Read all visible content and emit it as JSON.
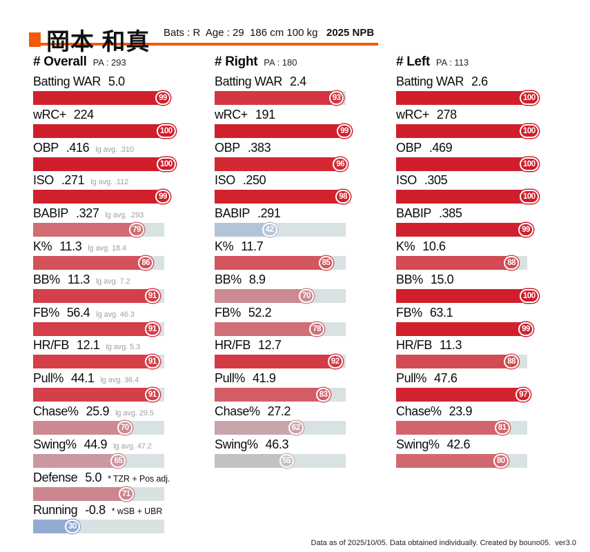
{
  "header": {
    "player_name": "岡本 和真",
    "bio": "Bats : R  Age : 29  186 cm 100 kg",
    "season": "2025 NPB"
  },
  "colors": {
    "accent": "#f2590d",
    "track": "#d9e2e2",
    "scale": [
      [
        0,
        "#5c84c4"
      ],
      [
        30,
        "#92abd0"
      ],
      [
        45,
        "#b9ccd9"
      ],
      [
        55,
        "#c4c1c5"
      ],
      [
        65,
        "#cb97a0"
      ],
      [
        75,
        "#cf7a82"
      ],
      [
        85,
        "#d3565d"
      ],
      [
        92,
        "#d43b44"
      ],
      [
        97,
        "#d1242f"
      ],
      [
        100,
        "#d01e2b"
      ]
    ]
  },
  "chart_data": {
    "type": "bar",
    "unit": "percentile vs league (0-100)",
    "ylim": [
      0,
      100
    ],
    "columns": [
      {
        "title": "# Overall",
        "pa_label": "PA : 293",
        "stats": [
          {
            "label": "Batting WAR",
            "value": "5.0",
            "note": "",
            "pct": 99
          },
          {
            "label": "wRC+",
            "value": "224",
            "note": "",
            "pct": 100
          },
          {
            "label": "OBP",
            "value": ".416",
            "note": "lg avg. .310",
            "pct": 100
          },
          {
            "label": "ISO",
            "value": ".271",
            "note": "lg avg. .112",
            "pct": 99
          },
          {
            "label": "BABIP",
            "value": ".327",
            "note": "lg avg. .293",
            "pct": 79
          },
          {
            "label": "K%",
            "value": "11.3",
            "note": "lg avg. 18.4",
            "pct": 86
          },
          {
            "label": "BB%",
            "value": "11.3",
            "note": "lg avg. 7.2",
            "pct": 91
          },
          {
            "label": "FB%",
            "value": "56.4",
            "note": "lg avg. 46.3",
            "pct": 91
          },
          {
            "label": "HR/FB",
            "value": "12.1",
            "note": "lg avg. 5.3",
            "pct": 91
          },
          {
            "label": "Pull%",
            "value": "44.1",
            "note": "lg avg. 36.4",
            "pct": 91
          },
          {
            "label": "Chase%",
            "value": "25.9",
            "note": "lg avg. 29.5",
            "pct": 70
          },
          {
            "label": "Swing%",
            "value": "44.9",
            "note": "lg avg. 47.2",
            "pct": 65
          },
          {
            "label": "Defense",
            "value": "5.0",
            "note": "* TZR + Pos adj.",
            "note_style": "black",
            "pct": 71
          },
          {
            "label": "Running",
            "value": "-0.8",
            "note": "* wSB + UBR",
            "note_style": "black",
            "pct": 30
          }
        ]
      },
      {
        "title": "# Right",
        "pa_label": "PA : 180",
        "stats": [
          {
            "label": "Batting WAR",
            "value": "2.4",
            "note": "",
            "pct": 93
          },
          {
            "label": "wRC+",
            "value": "191",
            "note": "",
            "pct": 99
          },
          {
            "label": "OBP",
            "value": ".383",
            "note": "",
            "pct": 96
          },
          {
            "label": "ISO",
            "value": ".250",
            "note": "",
            "pct": 98
          },
          {
            "label": "BABIP",
            "value": ".291",
            "note": "",
            "pct": 42
          },
          {
            "label": "K%",
            "value": "11.7",
            "note": "",
            "pct": 85
          },
          {
            "label": "BB%",
            "value": "8.9",
            "note": "",
            "pct": 70
          },
          {
            "label": "FB%",
            "value": "52.2",
            "note": "",
            "pct": 78
          },
          {
            "label": "HR/FB",
            "value": "12.7",
            "note": "",
            "pct": 92
          },
          {
            "label": "Pull%",
            "value": "41.9",
            "note": "",
            "pct": 83
          },
          {
            "label": "Chase%",
            "value": "27.2",
            "note": "",
            "pct": 62
          },
          {
            "label": "Swing%",
            "value": "46.3",
            "note": "",
            "pct": 55
          }
        ]
      },
      {
        "title": "# Left",
        "pa_label": "PA : 113",
        "stats": [
          {
            "label": "Batting WAR",
            "value": "2.6",
            "note": "",
            "pct": 100
          },
          {
            "label": "wRC+",
            "value": "278",
            "note": "",
            "pct": 100
          },
          {
            "label": "OBP",
            "value": ".469",
            "note": "",
            "pct": 100
          },
          {
            "label": "ISO",
            "value": ".305",
            "note": "",
            "pct": 100
          },
          {
            "label": "BABIP",
            "value": ".385",
            "note": "",
            "pct": 99
          },
          {
            "label": "K%",
            "value": "10.6",
            "note": "",
            "pct": 88
          },
          {
            "label": "BB%",
            "value": "15.0",
            "note": "",
            "pct": 100
          },
          {
            "label": "FB%",
            "value": "63.1",
            "note": "",
            "pct": 99
          },
          {
            "label": "HR/FB",
            "value": "11.3",
            "note": "",
            "pct": 88
          },
          {
            "label": "Pull%",
            "value": "47.6",
            "note": "",
            "pct": 97
          },
          {
            "label": "Chase%",
            "value": "23.9",
            "note": "",
            "pct": 81
          },
          {
            "label": "Swing%",
            "value": "42.6",
            "note": "",
            "pct": 80
          }
        ]
      }
    ]
  },
  "footer": "Data as of 2025/10/05. Data obtained individually. Created by bouno05.  ver3.0"
}
